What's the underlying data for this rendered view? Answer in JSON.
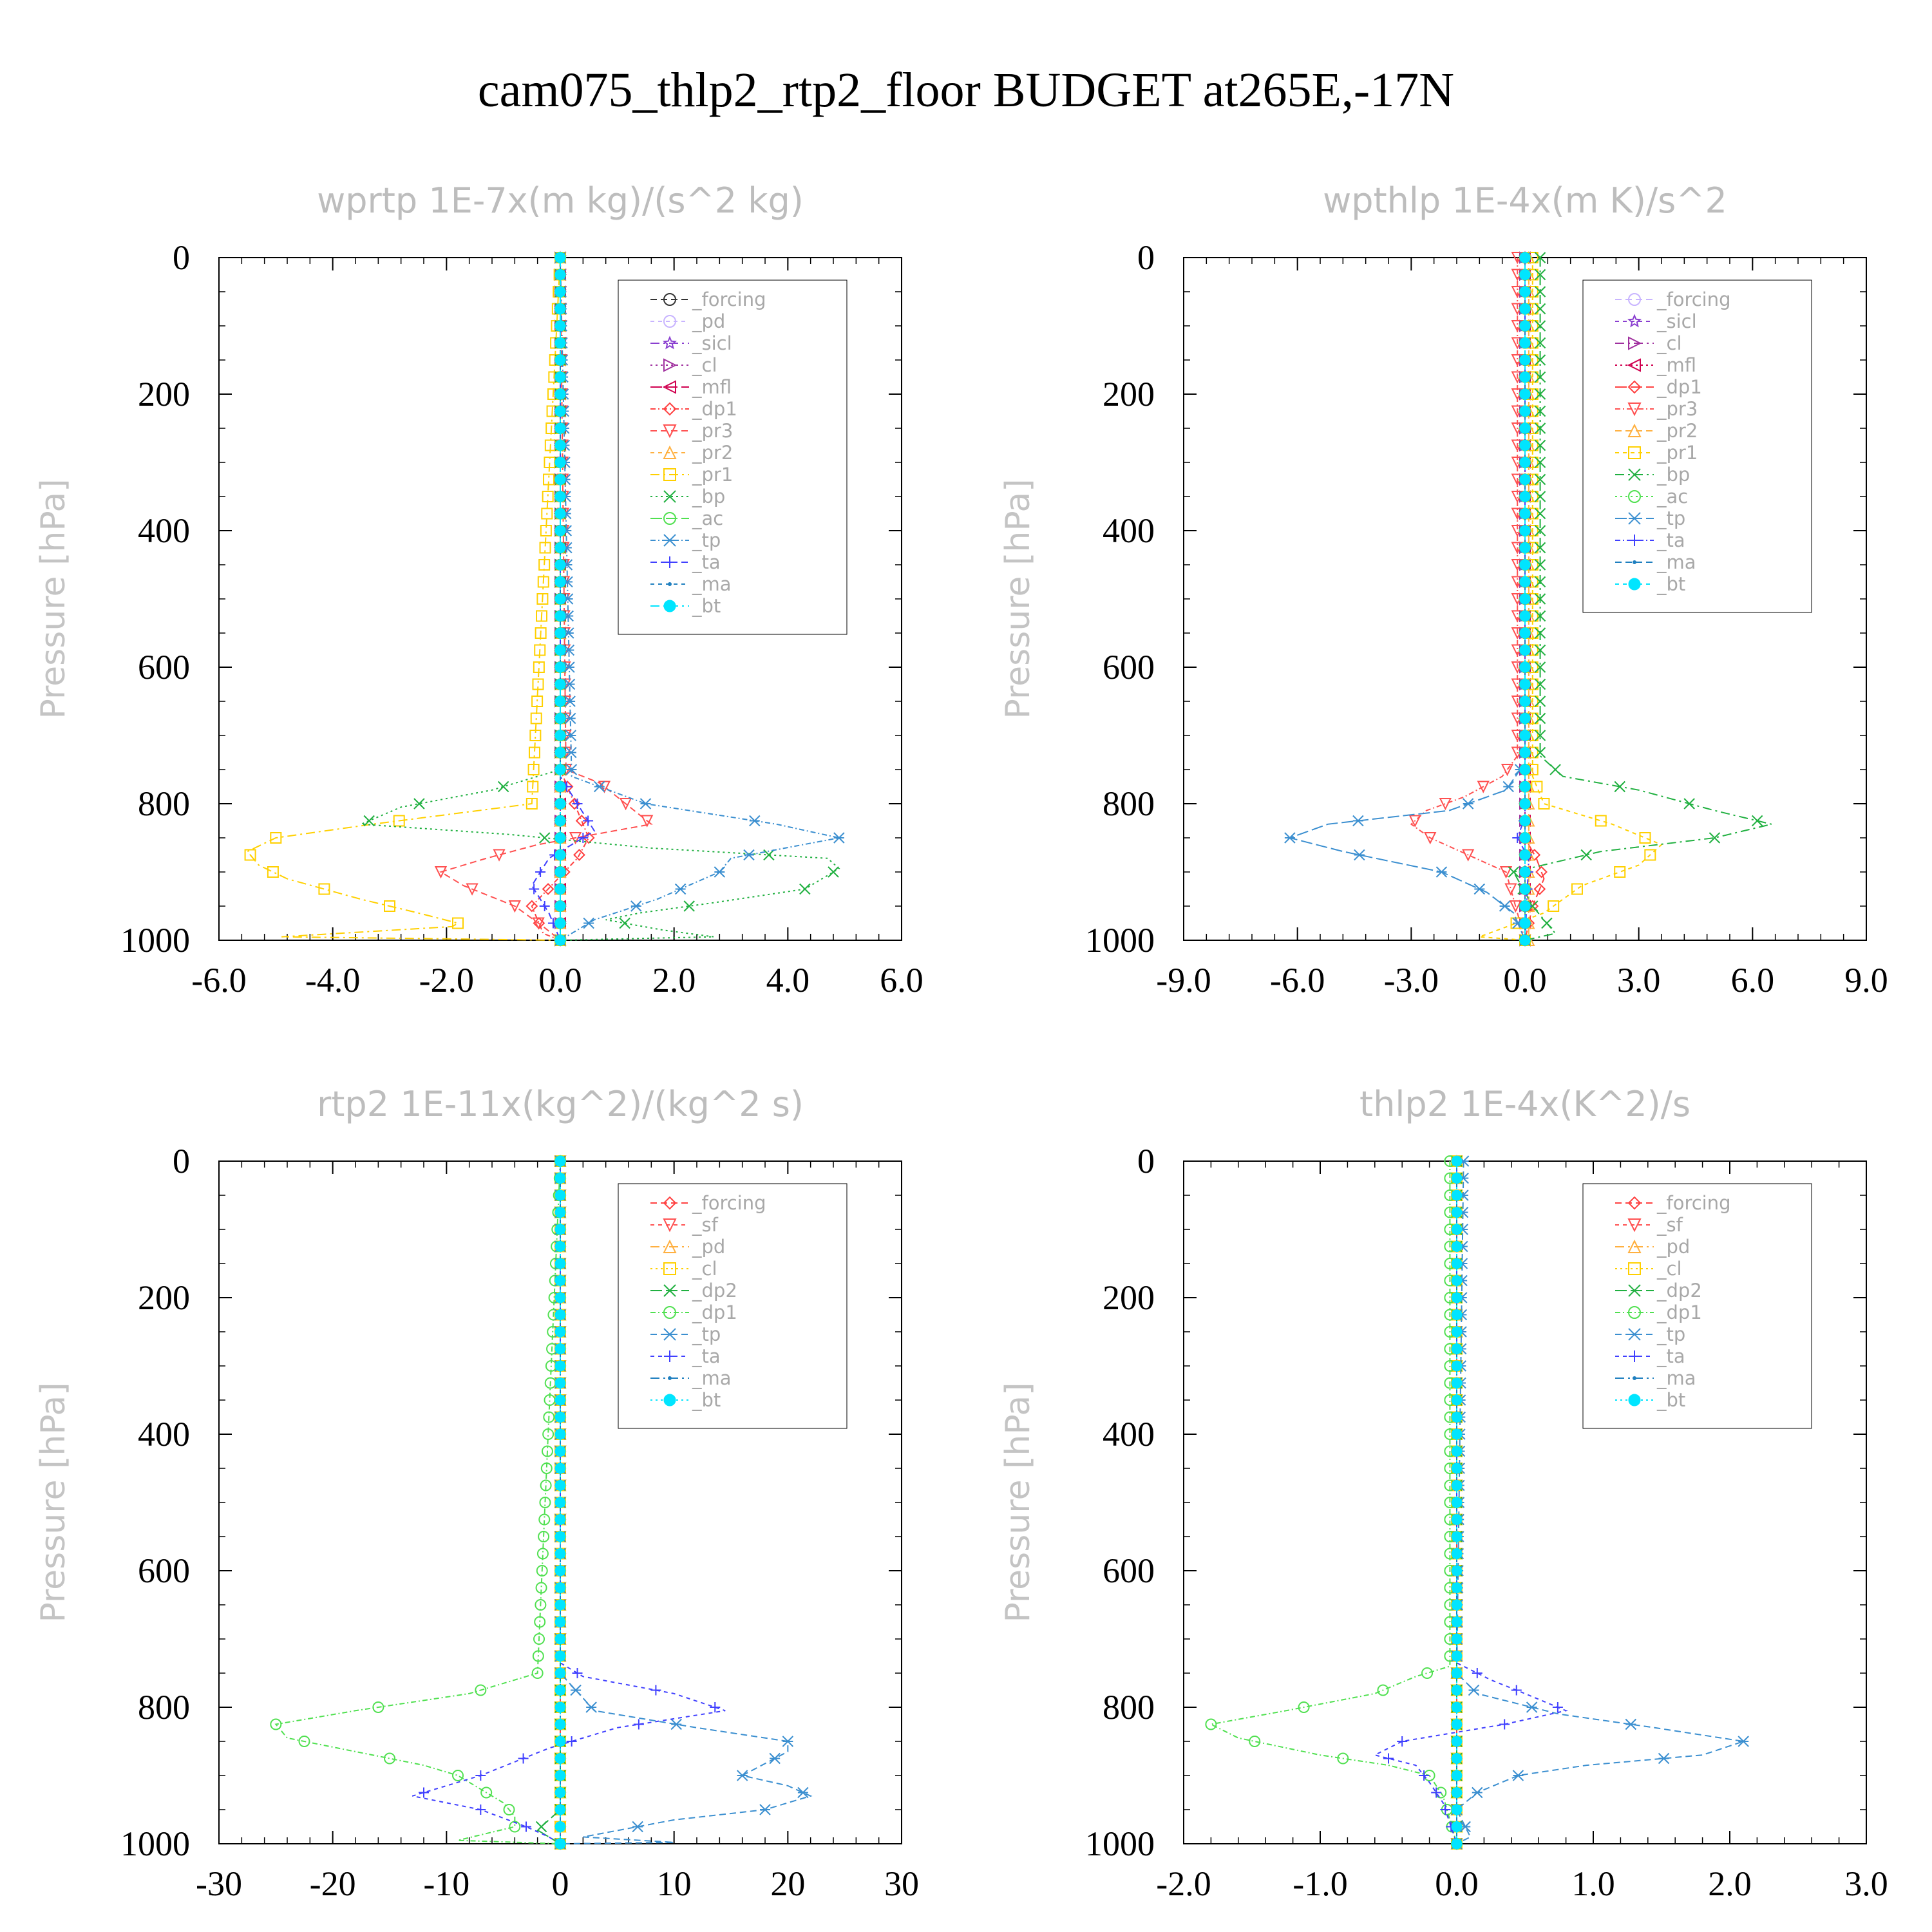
{
  "title": "cam075_thlp2_rtp2_floor  BUDGET at265E,-17N",
  "chart_data": [
    {
      "type": "line",
      "title": "wprtp   1E-7x(m kg)/(s^2 kg)",
      "ylabel": "Pressure [hPa]",
      "xlim": [
        -6,
        6
      ],
      "ylim": [
        0,
        1000
      ],
      "xticks": [
        "-6.0",
        "-4.0",
        "-2.0",
        "0.0",
        "2.0",
        "4.0",
        "6.0"
      ],
      "yticks": [
        "0",
        "200",
        "400",
        "600",
        "800",
        "1000"
      ],
      "legend_position": "top-right",
      "series": [
        {
          "name": "_forcing",
          "color": "#333333",
          "marker": "o",
          "x": [
            0,
            0
          ],
          "y": [
            0,
            1000
          ]
        },
        {
          "name": "_pd",
          "color": "#c8b4ff",
          "marker": "o",
          "x": [
            0,
            0
          ],
          "y": [
            0,
            1000
          ]
        },
        {
          "name": "_sicl",
          "color": "#8a3fd0",
          "marker": "star",
          "x": [
            0,
            0
          ],
          "y": [
            0,
            1000
          ]
        },
        {
          "name": "_cl",
          "color": "#a0309f",
          "marker": "tri-right",
          "x": [
            0,
            0
          ],
          "y": [
            0,
            1000
          ]
        },
        {
          "name": "_mfl",
          "color": "#d0004f",
          "marker": "tri-left",
          "x": [
            0,
            0
          ],
          "y": [
            0,
            1000
          ]
        },
        {
          "name": "_dp1",
          "color": "#ff4040",
          "marker": "diamond",
          "x": [
            0,
            0.0,
            0.5,
            0.3,
            -0.5,
            -0.3,
            0
          ],
          "y": [
            0,
            750,
            850,
            880,
            950,
            990,
            1000
          ]
        },
        {
          "name": "_pr3",
          "color": "#ff5050",
          "marker": "tri-down",
          "x": [
            0,
            0.1,
            0.7,
            1.6,
            -0.4,
            -1.3,
            -2.1,
            -1.7,
            -0.8,
            -0.3,
            0
          ],
          "y": [
            0,
            750,
            770,
            830,
            860,
            880,
            900,
            920,
            950,
            980,
            1000
          ]
        },
        {
          "name": "_pr2",
          "color": "#ffb040",
          "marker": "tri-up",
          "x": [
            0,
            0
          ],
          "y": [
            0,
            1000
          ]
        },
        {
          "name": "_pr1",
          "color": "#ffd000",
          "marker": "square",
          "x": [
            0,
            -0.5,
            -3.3,
            -5.0,
            -5.5,
            -5.3,
            -4.8,
            -3.5,
            -2.5,
            -1.8,
            -1.9,
            -4.9,
            0
          ],
          "y": [
            0,
            800,
            830,
            850,
            870,
            890,
            910,
            940,
            960,
            975,
            980,
            995,
            1000
          ]
        },
        {
          "name": "_bp",
          "color": "#20b040",
          "marker": "x",
          "x": [
            0,
            0,
            -1.2,
            -2.8,
            -3.5,
            -0.9,
            1.6,
            4.7,
            4.9,
            4.3,
            2.7,
            1.4,
            0.8,
            1.8,
            2.7,
            0
          ],
          "y": [
            0,
            750,
            780,
            805,
            830,
            845,
            865,
            880,
            895,
            925,
            945,
            960,
            970,
            985,
            995,
            1000
          ]
        },
        {
          "name": "_ac",
          "color": "#50e050",
          "marker": "o",
          "x": [
            0,
            0
          ],
          "y": [
            0,
            1000
          ]
        },
        {
          "name": "_tp",
          "color": "#3b8fd0",
          "marker": "asterisk",
          "x": [
            0,
            0.2,
            1.5,
            3.8,
            4.9,
            3.0,
            2.8,
            1.7,
            0.6,
            0
          ],
          "y": [
            0,
            760,
            800,
            830,
            850,
            880,
            900,
            940,
            970,
            1000
          ]
        },
        {
          "name": "_ta",
          "color": "#4040ff",
          "marker": "plus",
          "x": [
            0,
            0,
            0.3,
            0.6,
            0.2,
            -0.2,
            -0.5,
            -0.2,
            0
          ],
          "y": [
            0,
            760,
            800,
            840,
            860,
            880,
            920,
            960,
            1000
          ]
        },
        {
          "name": "_ma",
          "color": "#1f7fbf",
          "marker": "dot",
          "x": [
            0,
            0
          ],
          "y": [
            0,
            1000
          ]
        },
        {
          "name": "_bt",
          "color": "#00e5ff",
          "marker": "filled-circle",
          "x": [
            0,
            0
          ],
          "y": [
            0,
            1000
          ]
        }
      ]
    },
    {
      "type": "line",
      "title": "wpthlp   1E-4x(m K)/s^2",
      "ylabel": "Pressure [hPa]",
      "xlim": [
        -9,
        9
      ],
      "ylim": [
        0,
        1000
      ],
      "xticks": [
        "-9.0",
        "-6.0",
        "-3.0",
        "0.0",
        "3.0",
        "6.0",
        "9.0"
      ],
      "yticks": [
        "0",
        "200",
        "400",
        "600",
        "800",
        "1000"
      ],
      "legend_position": "top-right",
      "series": [
        {
          "name": "_forcing",
          "color": "#c8b4ff",
          "marker": "o",
          "x": [
            0,
            0
          ],
          "y": [
            0,
            1000
          ]
        },
        {
          "name": "_sicl",
          "color": "#8a3fd0",
          "marker": "star",
          "x": [
            0,
            0
          ],
          "y": [
            0,
            1000
          ]
        },
        {
          "name": "_cl",
          "color": "#a0309f",
          "marker": "tri-right",
          "x": [
            0,
            0
          ],
          "y": [
            0,
            1000
          ]
        },
        {
          "name": "_mfl",
          "color": "#d0004f",
          "marker": "tri-left",
          "x": [
            0,
            0
          ],
          "y": [
            0,
            1000
          ]
        },
        {
          "name": "_dp1",
          "color": "#ff4040",
          "marker": "diamond",
          "x": [
            0,
            0,
            0.3,
            0.5,
            0.2,
            0
          ],
          "y": [
            0,
            850,
            880,
            910,
            950,
            1000
          ]
        },
        {
          "name": "_pr3",
          "color": "#ff5050",
          "marker": "tri-down",
          "x": [
            -0.2,
            -0.2,
            -0.6,
            -1.6,
            -2.6,
            -3.0,
            -2.5,
            -0.5,
            0
          ],
          "y": [
            0,
            730,
            760,
            790,
            810,
            830,
            850,
            900,
            1000
          ]
        },
        {
          "name": "_pr2",
          "color": "#ffb040",
          "marker": "tri-up",
          "x": [
            0.1,
            0.1
          ],
          "y": [
            0,
            1000
          ]
        },
        {
          "name": "_pr1",
          "color": "#ffd000",
          "marker": "square",
          "x": [
            0.2,
            0.2,
            0.5,
            2.3,
            3.6,
            3.0,
            1.5,
            0.5,
            -1.2,
            0
          ],
          "y": [
            0,
            760,
            800,
            830,
            860,
            890,
            920,
            960,
            995,
            1000
          ]
        },
        {
          "name": "_bp",
          "color": "#20b040",
          "marker": "x",
          "x": [
            0.4,
            0.4,
            1.0,
            3.0,
            5.0,
            6.5,
            5.0,
            2.0,
            -0.3,
            0.2,
            0.8,
            0
          ],
          "y": [
            0,
            730,
            760,
            780,
            810,
            830,
            850,
            870,
            900,
            950,
            990,
            1000
          ]
        },
        {
          "name": "_ac",
          "color": "#50e050",
          "marker": "o",
          "x": [
            0,
            0
          ],
          "y": [
            0,
            1000
          ]
        },
        {
          "name": "_tp",
          "color": "#3b8fd0",
          "marker": "asterisk",
          "x": [
            0,
            0,
            -0.5,
            -2.0,
            -5.2,
            -6.2,
            -4.8,
            -2.2,
            -1.0,
            -0.3,
            0
          ],
          "y": [
            0,
            740,
            780,
            810,
            830,
            850,
            870,
            900,
            930,
            960,
            1000
          ]
        },
        {
          "name": "_ta",
          "color": "#4040ff",
          "marker": "plus",
          "x": [
            0,
            0,
            -0.2,
            0.1,
            0
          ],
          "y": [
            0,
            820,
            850,
            880,
            1000
          ]
        },
        {
          "name": "_ma",
          "color": "#1f7fbf",
          "marker": "dot",
          "x": [
            0,
            0
          ],
          "y": [
            0,
            1000
          ]
        },
        {
          "name": "_bt",
          "color": "#00e5ff",
          "marker": "filled-circle",
          "x": [
            0,
            0
          ],
          "y": [
            0,
            1000
          ]
        }
      ]
    },
    {
      "type": "line",
      "title": "rtp2   1E-11x(kg^2)/(kg^2 s)",
      "ylabel": "Pressure [hPa]",
      "xlim": [
        -30,
        30
      ],
      "ylim": [
        0,
        1000
      ],
      "xticks": [
        "-30",
        "-20",
        "-10",
        "0",
        "10",
        "20",
        "30"
      ],
      "yticks": [
        "0",
        "200",
        "400",
        "600",
        "800",
        "1000"
      ],
      "legend_position": "top-right",
      "series": [
        {
          "name": "_forcing",
          "color": "#ff4040",
          "marker": "diamond",
          "x": [
            0,
            0
          ],
          "y": [
            0,
            1000
          ]
        },
        {
          "name": "_sf",
          "color": "#ff5050",
          "marker": "tri-down",
          "x": [
            0,
            0
          ],
          "y": [
            0,
            1000
          ]
        },
        {
          "name": "_pd",
          "color": "#ffb040",
          "marker": "tri-up",
          "x": [
            0,
            0
          ],
          "y": [
            0,
            1000
          ]
        },
        {
          "name": "_cl",
          "color": "#ffd000",
          "marker": "square",
          "x": [
            0,
            0
          ],
          "y": [
            0,
            1000
          ]
        },
        {
          "name": "_dp2",
          "color": "#20b040",
          "marker": "x",
          "x": [
            0,
            0,
            -2,
            0
          ],
          "y": [
            0,
            950,
            980,
            1000
          ]
        },
        {
          "name": "_dp1",
          "color": "#50e050",
          "marker": "o",
          "x": [
            0,
            -2,
            -8,
            -18,
            -25,
            -24,
            -18,
            -12,
            -9,
            -7,
            -5,
            -4,
            -4,
            -9,
            0
          ],
          "y": [
            0,
            750,
            780,
            805,
            825,
            845,
            865,
            885,
            900,
            920,
            940,
            960,
            975,
            995,
            1000
          ]
        },
        {
          "name": "_tp",
          "color": "#3b8fd0",
          "marker": "asterisk",
          "x": [
            0,
            0,
            3,
            12,
            20,
            20,
            16,
            20,
            22,
            18,
            10,
            2,
            10,
            0
          ],
          "y": [
            0,
            750,
            805,
            830,
            850,
            865,
            900,
            915,
            930,
            950,
            965,
            990,
            998,
            1000
          ]
        },
        {
          "name": "_ta",
          "color": "#4040ff",
          "marker": "plus",
          "x": [
            0,
            0,
            2,
            10,
            14.5,
            5,
            -1,
            -4,
            -7,
            -10,
            -13,
            -7,
            -3,
            -1,
            0
          ],
          "y": [
            0,
            735,
            755,
            780,
            805,
            830,
            860,
            880,
            900,
            915,
            930,
            950,
            975,
            990,
            1000
          ]
        },
        {
          "name": "_ma",
          "color": "#1f7fbf",
          "marker": "dot",
          "x": [
            0,
            0
          ],
          "y": [
            0,
            1000
          ]
        },
        {
          "name": "_bt",
          "color": "#00e5ff",
          "marker": "filled-circle",
          "x": [
            0,
            0
          ],
          "y": [
            0,
            1000
          ]
        }
      ]
    },
    {
      "type": "line",
      "title": "thlp2   1E-4x(K^2)/s",
      "ylabel": "Pressure [hPa]",
      "xlim": [
        -2,
        3
      ],
      "ylim": [
        0,
        1000
      ],
      "xticks": [
        "-2.0",
        "-1.0",
        "0.0",
        "1.0",
        "2.0",
        "3.0"
      ],
      "yticks": [
        "0",
        "200",
        "400",
        "600",
        "800",
        "1000"
      ],
      "legend_position": "top-right",
      "series": [
        {
          "name": "_forcing",
          "color": "#ff4040",
          "marker": "diamond",
          "x": [
            0,
            0
          ],
          "y": [
            0,
            1000
          ]
        },
        {
          "name": "_sf",
          "color": "#ff5050",
          "marker": "tri-down",
          "x": [
            0,
            0
          ],
          "y": [
            0,
            1000
          ]
        },
        {
          "name": "_pd",
          "color": "#ffb040",
          "marker": "tri-up",
          "x": [
            0,
            0
          ],
          "y": [
            0,
            1000
          ]
        },
        {
          "name": "_cl",
          "color": "#ffd000",
          "marker": "square",
          "x": [
            0,
            0
          ],
          "y": [
            0,
            1000
          ]
        },
        {
          "name": "_dp2",
          "color": "#20b040",
          "marker": "x",
          "x": [
            0,
            0
          ],
          "y": [
            0,
            1000
          ]
        },
        {
          "name": "_dp1",
          "color": "#50e050",
          "marker": "o",
          "x": [
            -0.05,
            -0.05,
            -0.3,
            -0.6,
            -1.25,
            -1.8,
            -1.6,
            -1.0,
            -0.5,
            -0.2,
            -0.1,
            0
          ],
          "y": [
            0,
            740,
            755,
            780,
            805,
            825,
            845,
            870,
            885,
            900,
            930,
            1000
          ]
        },
        {
          "name": "_tp",
          "color": "#3b8fd0",
          "marker": "asterisk",
          "x": [
            0.05,
            0,
            0.15,
            0.75,
            1.45,
            2.1,
            1.8,
            0.95,
            0.45,
            0.15,
            0,
            0.1,
            0
          ],
          "y": [
            0,
            750,
            780,
            810,
            830,
            850,
            870,
            885,
            900,
            925,
            950,
            990,
            1000
          ]
        },
        {
          "name": "_ta",
          "color": "#4040ff",
          "marker": "plus",
          "x": [
            0,
            0,
            0.25,
            0.5,
            0.8,
            0.35,
            -0.4,
            -0.6,
            -0.3,
            -0.2,
            -0.1,
            0
          ],
          "y": [
            0,
            735,
            760,
            780,
            805,
            825,
            850,
            870,
            885,
            910,
            940,
            1000
          ]
        },
        {
          "name": "_ma",
          "color": "#1f7fbf",
          "marker": "dot",
          "x": [
            0,
            0
          ],
          "y": [
            0,
            1000
          ]
        },
        {
          "name": "_bt",
          "color": "#00e5ff",
          "marker": "filled-circle",
          "x": [
            0,
            0
          ],
          "y": [
            0,
            1000
          ]
        }
      ]
    }
  ]
}
